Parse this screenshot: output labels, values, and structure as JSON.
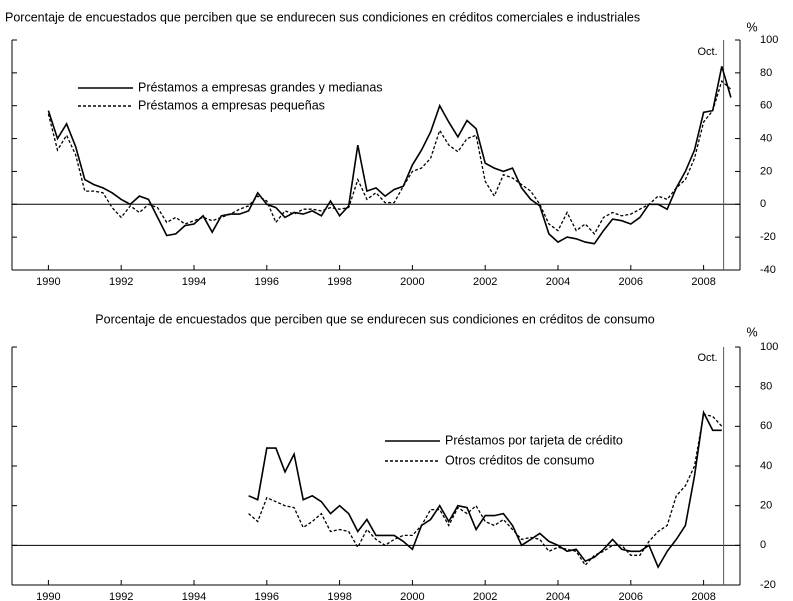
{
  "chart_data": [
    {
      "type": "line",
      "title": "Porcentaje de encuestados que perciben que se endurecen sus condiciones en créditos comerciales e industriales",
      "y_unit": "%",
      "annotation": {
        "label": "Oct.",
        "x": 2008.55
      },
      "xlim": [
        1989,
        2009
      ],
      "xticks": [
        1990,
        1992,
        1994,
        1996,
        1998,
        2000,
        2002,
        2004,
        2006,
        2008
      ],
      "ylim": [
        -40,
        100
      ],
      "yticks": [
        -40,
        -20,
        0,
        20,
        40,
        60,
        80,
        100
      ],
      "x": [
        1990,
        1990.25,
        1990.5,
        1990.75,
        1991,
        1991.25,
        1991.5,
        1991.75,
        1992,
        1992.25,
        1992.5,
        1992.75,
        1993,
        1993.25,
        1993.5,
        1993.75,
        1994,
        1994.25,
        1994.5,
        1994.75,
        1995,
        1995.25,
        1995.5,
        1995.75,
        1996,
        1996.25,
        1996.5,
        1996.75,
        1997,
        1997.25,
        1997.5,
        1997.75,
        1998,
        1998.25,
        1998.5,
        1998.75,
        1999,
        1999.25,
        1999.5,
        1999.75,
        2000,
        2000.25,
        2000.5,
        2000.75,
        2001,
        2001.25,
        2001.5,
        2001.75,
        2002,
        2002.25,
        2002.5,
        2002.75,
        2003,
        2003.25,
        2003.5,
        2003.75,
        2004,
        2004.25,
        2004.5,
        2004.75,
        2005,
        2005.25,
        2005.5,
        2005.75,
        2006,
        2006.25,
        2006.5,
        2006.75,
        2007,
        2007.25,
        2007.5,
        2007.75,
        2008,
        2008.25,
        2008.5,
        2008.75
      ],
      "series": [
        {
          "name": "Préstamos a empresas grandes y medianas",
          "color": "#000000",
          "dash": false,
          "values": [
            57,
            40,
            49,
            35,
            15,
            12,
            10,
            7,
            3,
            0,
            5,
            3,
            -8,
            -19,
            -18,
            -13,
            -12,
            -7,
            -17,
            -7,
            -6,
            -6,
            -4,
            7,
            0,
            -2,
            -8,
            -5,
            -6,
            -4,
            -7,
            2,
            -7,
            -1,
            36,
            8,
            10,
            5,
            9,
            11,
            24,
            33,
            44,
            60,
            50,
            41,
            51,
            46,
            25,
            22,
            20,
            22,
            10,
            3,
            -1,
            -18,
            -23,
            -20,
            -21,
            -23,
            -24,
            -16,
            -9,
            -10,
            -12,
            -8,
            0,
            0,
            -3,
            10,
            20,
            33,
            56,
            57,
            84,
            65
          ]
        },
        {
          "name": "Préstamos a empresas pequeñas",
          "color": "#000000",
          "dash": true,
          "values": [
            55,
            33,
            42,
            30,
            8,
            8,
            7,
            -2,
            -8,
            -1,
            -5,
            0,
            -2,
            -11,
            -8,
            -12,
            -10,
            -8,
            -10,
            -8,
            -6,
            -3,
            -1,
            5,
            2,
            -11,
            -4,
            -6,
            -3,
            -3,
            -4,
            -2,
            -3,
            -2,
            15,
            3,
            7,
            1,
            1,
            11,
            20,
            22,
            28,
            45,
            36,
            32,
            40,
            42,
            14,
            5,
            18,
            16,
            12,
            8,
            0,
            -12,
            -16,
            -5,
            -16,
            -12,
            -18,
            -8,
            -5,
            -7,
            -6,
            -3,
            0,
            5,
            3,
            10,
            15,
            28,
            50,
            57,
            75,
            70
          ]
        }
      ]
    },
    {
      "type": "line",
      "title": "Porcentaje de encuestados que perciben que se endurecen sus condiciones en créditos de consumo",
      "y_unit": "%",
      "annotation": {
        "label": "Oct.",
        "x": 2008.55
      },
      "xlim": [
        1989,
        2009
      ],
      "xticks": [
        1990,
        1992,
        1994,
        1996,
        1998,
        2000,
        2002,
        2004,
        2006,
        2008
      ],
      "ylim": [
        -20,
        100
      ],
      "yticks": [
        -20,
        0,
        20,
        40,
        60,
        80,
        100
      ],
      "x": [
        1995.5,
        1995.75,
        1996,
        1996.25,
        1996.5,
        1996.75,
        1997,
        1997.25,
        1997.5,
        1997.75,
        1998,
        1998.25,
        1998.5,
        1998.75,
        1999,
        1999.25,
        1999.5,
        1999.75,
        2000,
        2000.25,
        2000.5,
        2000.75,
        2001,
        2001.25,
        2001.5,
        2001.75,
        2002,
        2002.25,
        2002.5,
        2002.75,
        2003,
        2003.25,
        2003.5,
        2003.75,
        2004,
        2004.25,
        2004.5,
        2004.75,
        2005,
        2005.25,
        2005.5,
        2005.75,
        2006,
        2006.25,
        2006.5,
        2006.75,
        2007,
        2007.25,
        2007.5,
        2007.75,
        2008,
        2008.25,
        2008.5
      ],
      "series": [
        {
          "name": "Préstamos por tarjeta de crédito",
          "color": "#000000",
          "dash": false,
          "values": [
            25,
            23,
            49,
            49,
            37,
            46,
            23,
            25,
            22,
            16,
            20,
            16,
            7,
            13,
            5,
            5,
            5,
            2,
            -2,
            10,
            13,
            20,
            12,
            20,
            19,
            8,
            15,
            15,
            16,
            10,
            0,
            3,
            6,
            2,
            0,
            -3,
            -2,
            -8,
            -6,
            -2,
            3,
            -2,
            -3,
            -3,
            0,
            -11,
            -3,
            3,
            10,
            35,
            67,
            58,
            58
          ]
        },
        {
          "name": "Otros créditos de consumo",
          "color": "#000000",
          "dash": true,
          "values": [
            16,
            12,
            24,
            22,
            20,
            19,
            9,
            12,
            16,
            7,
            8,
            7,
            -1,
            8,
            3,
            0,
            3,
            5,
            5,
            10,
            18,
            18,
            10,
            19,
            16,
            20,
            12,
            10,
            13,
            8,
            3,
            4,
            3,
            -3,
            -1,
            -2,
            -3,
            -10,
            -5,
            -3,
            0,
            0,
            -5,
            -5,
            2,
            7,
            10,
            25,
            30,
            40,
            66,
            65,
            60
          ]
        }
      ]
    }
  ]
}
